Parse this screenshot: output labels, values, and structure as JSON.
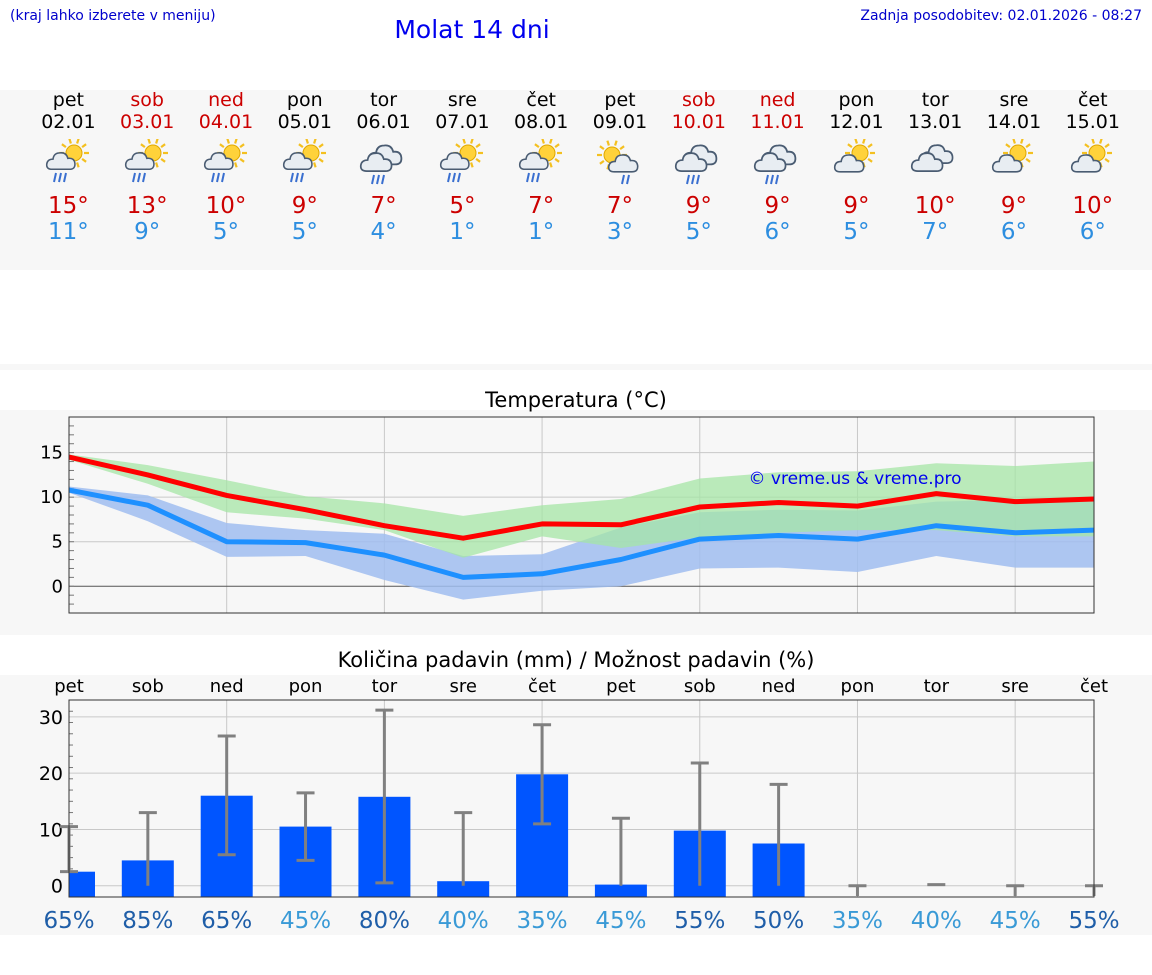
{
  "header": {
    "hint": "(kraj lahko izberete v meniju)",
    "title": "Molat 14 dni",
    "updated": "Zadnja posodobitev: 02.01.2026 - 08:27"
  },
  "days": [
    {
      "name": "pet",
      "date": "02.01",
      "weekend": false,
      "icon": "sun-cloud-rain-icon",
      "tmax": "15°",
      "tmin": "11°"
    },
    {
      "name": "sob",
      "date": "03.01",
      "weekend": true,
      "icon": "sun-cloud-rain-icon",
      "tmax": "13°",
      "tmin": "9°"
    },
    {
      "name": "ned",
      "date": "04.01",
      "weekend": true,
      "icon": "sun-cloud-rain-icon",
      "tmax": "10°",
      "tmin": "5°"
    },
    {
      "name": "pon",
      "date": "05.01",
      "weekend": false,
      "icon": "sun-cloud-rain-icon",
      "tmax": "9°",
      "tmin": "5°"
    },
    {
      "name": "tor",
      "date": "06.01",
      "weekend": false,
      "icon": "cloud-rain-icon",
      "tmax": "7°",
      "tmin": "4°"
    },
    {
      "name": "sre",
      "date": "07.01",
      "weekend": false,
      "icon": "sun-cloud-rain-icon",
      "tmax": "5°",
      "tmin": "1°"
    },
    {
      "name": "čet",
      "date": "08.01",
      "weekend": false,
      "icon": "sun-cloud-rain-icon",
      "tmax": "7°",
      "tmin": "1°"
    },
    {
      "name": "pet",
      "date": "09.01",
      "weekend": false,
      "icon": "sun-cloud-drizzle-icon",
      "tmax": "7°",
      "tmin": "3°"
    },
    {
      "name": "sob",
      "date": "10.01",
      "weekend": true,
      "icon": "cloud-rain-icon",
      "tmax": "9°",
      "tmin": "5°"
    },
    {
      "name": "ned",
      "date": "11.01",
      "weekend": true,
      "icon": "cloud-rain-icon",
      "tmax": "9°",
      "tmin": "6°"
    },
    {
      "name": "pon",
      "date": "12.01",
      "weekend": false,
      "icon": "sun-cloud-icon",
      "tmax": "9°",
      "tmin": "5°"
    },
    {
      "name": "tor",
      "date": "13.01",
      "weekend": false,
      "icon": "cloud-icon",
      "tmax": "10°",
      "tmin": "7°"
    },
    {
      "name": "sre",
      "date": "14.01",
      "weekend": false,
      "icon": "sun-cloud-icon",
      "tmax": "9°",
      "tmin": "6°"
    },
    {
      "name": "čet",
      "date": "15.01",
      "weekend": false,
      "icon": "sun-cloud-icon",
      "tmax": "10°",
      "tmin": "6°"
    }
  ],
  "chart_data": [
    {
      "type": "line",
      "title": "Temperatura (°C)",
      "watermark": "© vreme.us & vreme.pro",
      "ylim": [
        -3,
        19
      ],
      "yticks": [
        0,
        5,
        10,
        15
      ],
      "series": [
        {
          "name": "max",
          "color": "#ff0000",
          "values": [
            14.5,
            12.5,
            10.2,
            8.6,
            6.8,
            5.4,
            7.0,
            6.9,
            8.9,
            9.4,
            9.0,
            10.4,
            9.5,
            9.8
          ]
        },
        {
          "name": "max-range",
          "color": "#a6e6a6",
          "low": [
            14.2,
            11.5,
            8.3,
            7.6,
            6.3,
            3.2,
            5.6,
            4.3,
            5.5,
            6.0,
            6.3,
            6.3,
            5.6,
            5.6
          ],
          "high": [
            14.8,
            13.6,
            11.9,
            10.1,
            9.3,
            7.9,
            9.1,
            9.8,
            12.1,
            12.8,
            12.9,
            13.8,
            13.5,
            14.0
          ]
        },
        {
          "name": "min",
          "color": "#1e90ff",
          "values": [
            10.8,
            9.1,
            5.0,
            4.9,
            3.5,
            1.0,
            1.4,
            3.0,
            5.3,
            5.7,
            5.3,
            6.8,
            6.0,
            6.3
          ]
        },
        {
          "name": "min-range",
          "color": "#a0bdf0",
          "low": [
            10.5,
            7.3,
            3.3,
            3.4,
            0.7,
            -1.5,
            -0.5,
            0.0,
            2.0,
            2.1,
            1.6,
            3.4,
            2.1,
            2.1
          ],
          "high": [
            11.2,
            10.2,
            7.1,
            6.3,
            5.9,
            3.4,
            3.6,
            6.6,
            8.3,
            8.6,
            8.5,
            9.5,
            9.7,
            10.0
          ]
        }
      ]
    },
    {
      "type": "bar",
      "title": "Količina padavin (mm) / Možnost padavin (%)",
      "categories": [
        "pet",
        "sob",
        "ned",
        "pon",
        "tor",
        "sre",
        "čet",
        "pet",
        "sob",
        "ned",
        "pon",
        "tor",
        "sre",
        "čet"
      ],
      "ylim": [
        -2,
        33
      ],
      "yticks": [
        0,
        10,
        20,
        30
      ],
      "values": [
        2.5,
        4.5,
        16.0,
        10.5,
        15.8,
        0.8,
        19.8,
        0.2,
        9.8,
        7.5,
        0,
        0,
        0,
        0
      ],
      "error_low": [
        2.5,
        0,
        5.5,
        4.5,
        0.5,
        0,
        11.0,
        0,
        0,
        0,
        0,
        0,
        0,
        0
      ],
      "error_high": [
        10.5,
        13.0,
        26.6,
        16.5,
        31.2,
        13.0,
        28.6,
        12.0,
        21.8,
        18.0,
        0,
        0.2,
        0,
        0
      ],
      "probability": [
        "65%",
        "85%",
        "65%",
        "45%",
        "80%",
        "40%",
        "35%",
        "45%",
        "55%",
        "50%",
        "35%",
        "40%",
        "45%",
        "55%"
      ],
      "probability_colors": [
        "#1f5ea8",
        "#1f5ea8",
        "#1f5ea8",
        "#3a9ad6",
        "#1f5ea8",
        "#3a9ad6",
        "#3a9ad6",
        "#3a9ad6",
        "#1f5ea8",
        "#1f5ea8",
        "#3a9ad6",
        "#3a9ad6",
        "#3a9ad6",
        "#1f5ea8"
      ],
      "bar_color": "#0055ff"
    }
  ]
}
